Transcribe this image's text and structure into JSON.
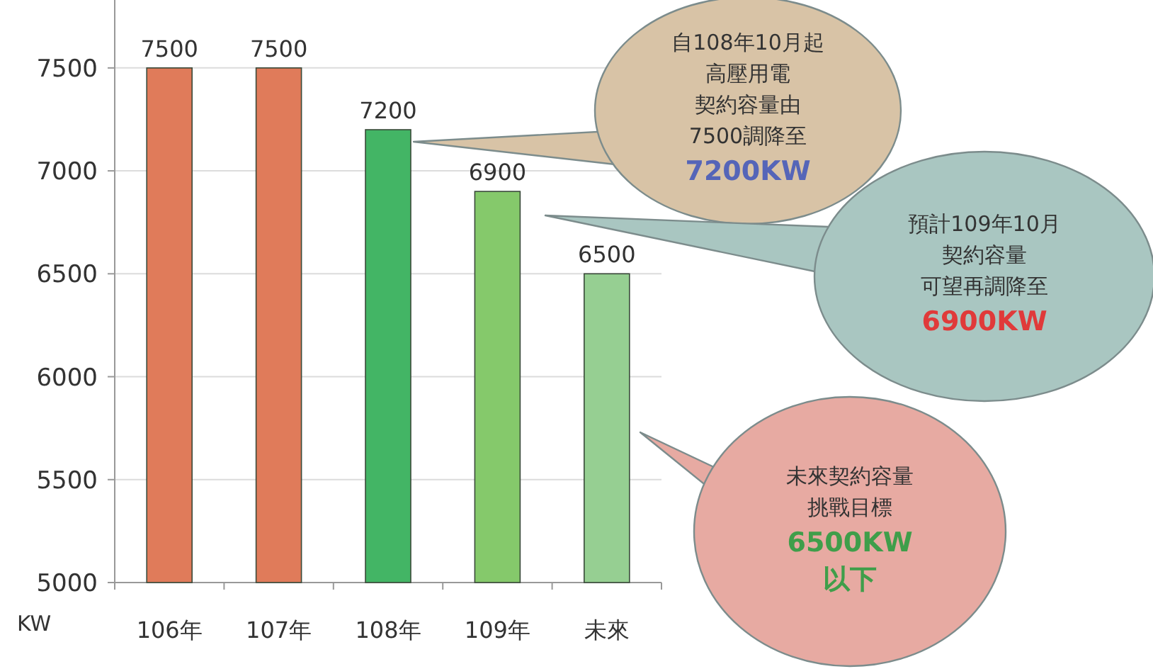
{
  "chart_data": {
    "type": "bar",
    "ylabel": "KW",
    "categories": [
      "106年",
      "107年",
      "108年",
      "109年",
      "未來"
    ],
    "values": [
      7500,
      7500,
      7200,
      6900,
      6500
    ],
    "colors": [
      "#e07b5a",
      "#e07b5a",
      "#43b565",
      "#85c96b",
      "#96cf92"
    ],
    "ylim": [
      5000,
      7830
    ],
    "yticks": [
      5000,
      5500,
      6000,
      6500,
      7000,
      7500
    ],
    "grid": "y",
    "data_labels": true,
    "annotations": [
      "自108年10月起",
      "高壓用電",
      "契約容量由",
      "7500調降至",
      "7200KW",
      "預計109年10月",
      "契約容量",
      "可望再調降至",
      "6900KW",
      "未來契約容量",
      "挑戰目標",
      "6500KW",
      "以下"
    ]
  }
}
